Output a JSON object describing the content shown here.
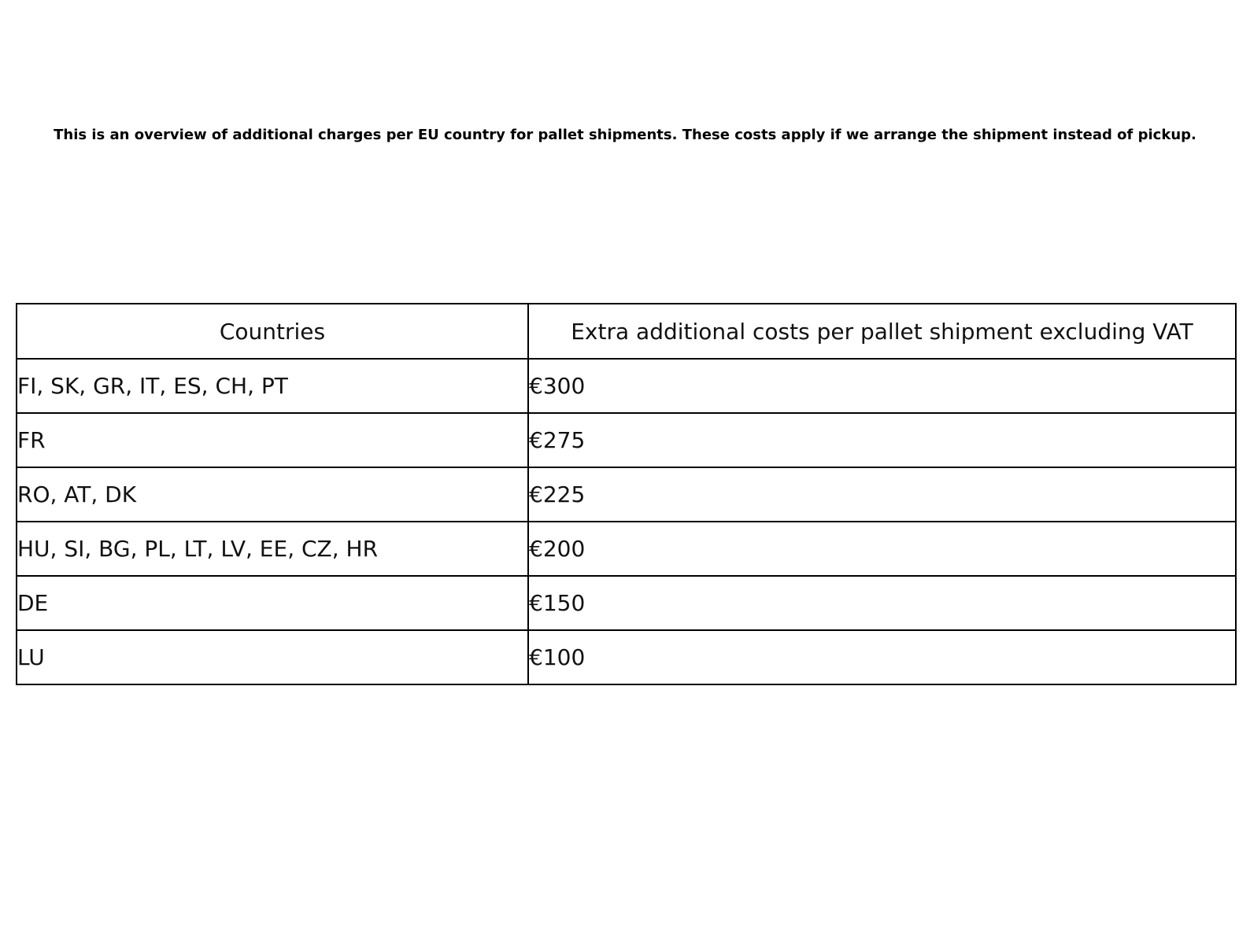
{
  "page": {
    "background": "#ffffff",
    "text_color": "#000000",
    "border_color": "#000000"
  },
  "chart_data": {
    "type": "table",
    "title": "This is an overview of additional charges per EU country for pallet shipments. These costs apply if we arrange the shipment instead of pickup.",
    "columns": [
      "Countries",
      "Extra additional costs per pallet shipment excluding VAT"
    ],
    "rows": [
      [
        "FI, SK, GR, IT, ES, CH, PT",
        "€300"
      ],
      [
        "FR",
        "€275"
      ],
      [
        "RO, AT, DK",
        "€225"
      ],
      [
        "HU, SI, BG, PL, LT, LV, EE, CZ, HR",
        "€200"
      ],
      [
        "DE",
        "€150"
      ],
      [
        "LU",
        "€100"
      ]
    ],
    "values_eur": [
      300,
      275,
      225,
      200,
      150,
      100
    ],
    "currency": "EUR",
    "layout": {
      "header_align": "center",
      "body_align": "left",
      "grid": true
    }
  }
}
